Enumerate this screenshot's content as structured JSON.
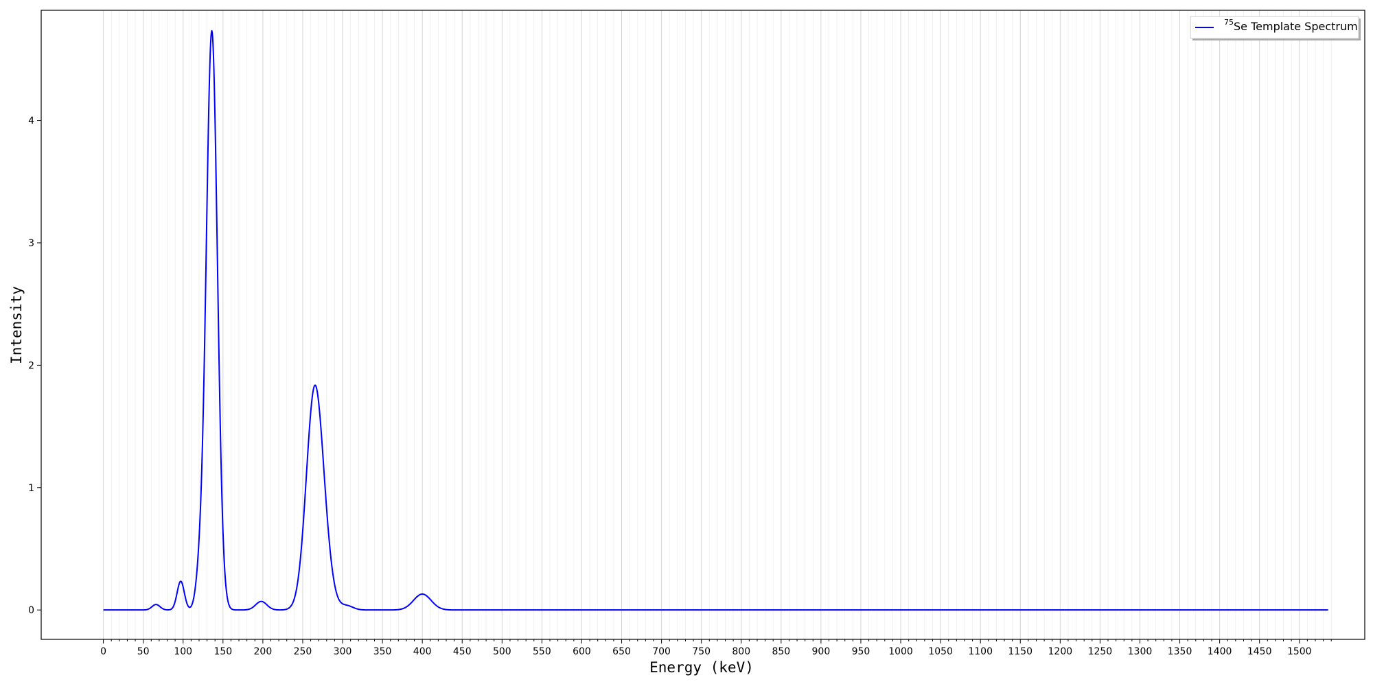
{
  "chart_data": {
    "type": "line",
    "title": "",
    "xlabel": "Energy (keV)",
    "ylabel": "Intensity",
    "xlim": [
      -78,
      1582
    ],
    "ylim": [
      -0.24,
      4.9
    ],
    "x_major_ticks": [
      0,
      50,
      100,
      150,
      200,
      250,
      300,
      350,
      400,
      450,
      500,
      550,
      600,
      650,
      700,
      750,
      800,
      850,
      900,
      950,
      1000,
      1050,
      1100,
      1150,
      1200,
      1250,
      1300,
      1350,
      1400,
      1450,
      1500
    ],
    "x_minor_step": 10,
    "y_ticks": [
      0,
      1,
      2,
      3,
      4
    ],
    "grid": "vertical",
    "legend_position": "top-right",
    "series": [
      {
        "name_sup": "75",
        "name": "Se Template Spectrum",
        "color": "#0000ff",
        "x_range": [
          0,
          1536
        ],
        "peaks": [
          {
            "center": 66,
            "height": 0.045,
            "sigma": 5
          },
          {
            "center": 97,
            "height": 0.235,
            "sigma": 4.5
          },
          {
            "center": 121,
            "height": 0.24,
            "sigma": 5
          },
          {
            "center": 136,
            "height": 4.73,
            "sigma": 7.0
          },
          {
            "center": 198,
            "height": 0.07,
            "sigma": 7
          },
          {
            "center": 265,
            "height": 1.79,
            "sigma": 10.5
          },
          {
            "center": 280,
            "height": 0.18,
            "sigma": 9
          },
          {
            "center": 305,
            "height": 0.035,
            "sigma": 8
          },
          {
            "center": 400,
            "height": 0.13,
            "sigma": 11
          }
        ]
      }
    ]
  }
}
